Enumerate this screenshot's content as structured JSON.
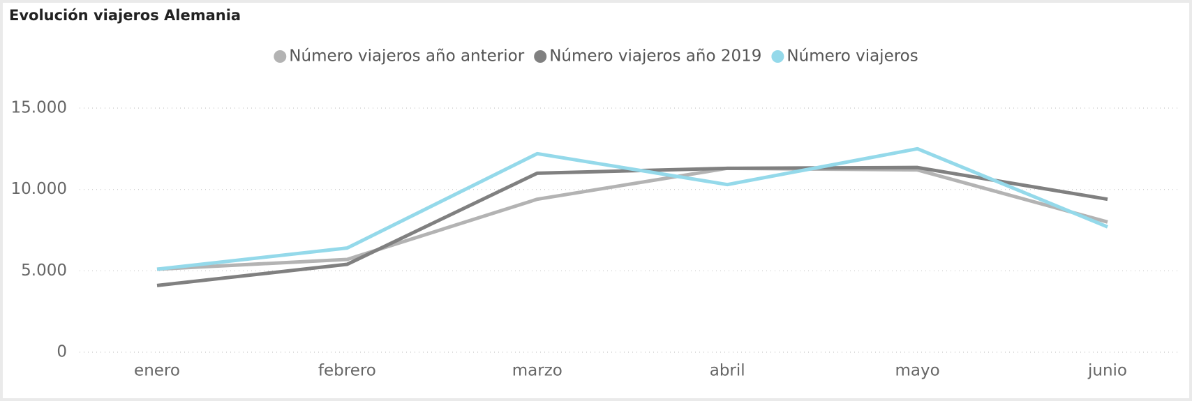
{
  "chart_data": {
    "type": "line",
    "title": "Evolución viajeros Alemania",
    "categories": [
      "enero",
      "febrero",
      "marzo",
      "abril",
      "mayo",
      "junio"
    ],
    "series": [
      {
        "name": "Número viajeros año anterior",
        "color": "#b3b3b3",
        "values": [
          5100,
          5700,
          9400,
          11300,
          11200,
          8000
        ]
      },
      {
        "name": "Número viajeros año 2019",
        "color": "#808080",
        "values": [
          4100,
          5400,
          11000,
          11300,
          11350,
          9400
        ]
      },
      {
        "name": "Número viajeros",
        "color": "#94d9ea",
        "values": [
          5100,
          6400,
          12200,
          10300,
          12500,
          7700
        ]
      }
    ],
    "ylim": [
      0,
      15000
    ],
    "yticks": [
      0,
      {
        "value": 5000,
        "label": "5.000"
      },
      {
        "value": 10000,
        "label": "10.000"
      },
      {
        "value": 15000,
        "label": "15.000"
      }
    ],
    "grid": true,
    "legend": "top"
  }
}
